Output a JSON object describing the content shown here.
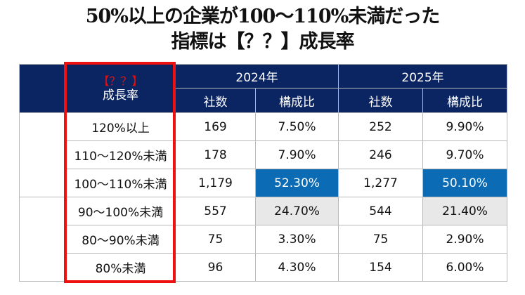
{
  "title": {
    "line1": "50%以上の企業が100〜110%未満だった",
    "line2": "指標は【？？】成長率"
  },
  "colors": {
    "header_bg": "#0b2462",
    "header_text": "#ffffff",
    "highlight_blue": "#0b6bb5",
    "highlight_gray": "#e8e8e8",
    "red_box": "#ee1111",
    "question_mark_text": "#e01010"
  },
  "table": {
    "header": {
      "metric_label_question": "【？？】",
      "metric_label": "成長率",
      "years": [
        "2024年",
        "2025年"
      ],
      "subcolumns": [
        "社数",
        "構成比",
        "社数",
        "構成比"
      ]
    },
    "rows": [
      {
        "range": "120%以上",
        "count_2024": "169",
        "ratio_2024": "7.50%",
        "count_2025": "252",
        "ratio_2025": "9.90%",
        "highlight": ""
      },
      {
        "range": "110〜120%未満",
        "count_2024": "178",
        "ratio_2024": "7.90%",
        "count_2025": "246",
        "ratio_2025": "9.70%",
        "highlight": ""
      },
      {
        "range": "100〜110%未満",
        "count_2024": "1,179",
        "ratio_2024": "52.30%",
        "count_2025": "1,277",
        "ratio_2025": "50.10%",
        "highlight": "blue"
      },
      {
        "range": "90〜100%未満",
        "count_2024": "557",
        "ratio_2024": "24.70%",
        "count_2025": "544",
        "ratio_2025": "21.40%",
        "highlight": "gray"
      },
      {
        "range": "80〜90%未満",
        "count_2024": "75",
        "ratio_2024": "3.30%",
        "count_2025": "75",
        "ratio_2025": "2.90%",
        "highlight": ""
      },
      {
        "range": "80%未満",
        "count_2024": "96",
        "ratio_2024": "4.30%",
        "count_2025": "154",
        "ratio_2025": "6.00%",
        "highlight": ""
      }
    ],
    "group_labels": [
      "",
      ""
    ]
  }
}
